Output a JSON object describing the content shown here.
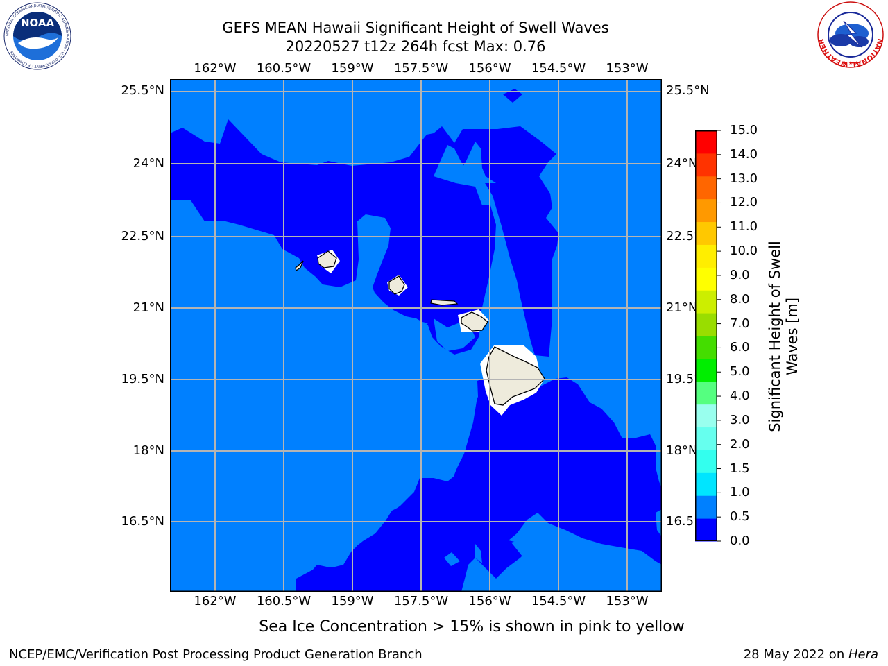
{
  "title_line1": "GEFS MEAN Hawaii Significant Height of Swell Waves",
  "title_line2": "20220527 t12z 264h fcst   Max: 0.76",
  "lon_labels": [
    "162°W",
    "160.5°W",
    "159°W",
    "157.5°W",
    "156°W",
    "154.5°W",
    "153°W"
  ],
  "lat_labels": [
    "25.5°N",
    "24°N",
    "22.5°N",
    "21°N",
    "19.5°N",
    "18°N",
    "16.5°N"
  ],
  "colorbar": {
    "title_line1": "Significant Height of Swell",
    "title_line2": "Waves [m]",
    "tick_labels": [
      "0.0",
      "0.5",
      "1.0",
      "1.5",
      "2.0",
      "3.0",
      "4.0",
      "5.0",
      "6.0",
      "7.0",
      "8.0",
      "9.0",
      "10.0",
      "11.0",
      "12.0",
      "13.0",
      "14.0",
      "15.0"
    ],
    "colors": [
      "#0000ff",
      "#0080ff",
      "#00e5ff",
      "#33ffee",
      "#66ffee",
      "#99ffee",
      "#55ff80",
      "#00ee00",
      "#44dd00",
      "#99dd00",
      "#ccee00",
      "#ffff00",
      "#ffee00",
      "#ffc800",
      "#ff9900",
      "#ff6600",
      "#ff3300",
      "#ff0000"
    ]
  },
  "caption": "Sea Ice Concentration > 15% is shown in pink to yellow",
  "footer_left": "NCEP/EMC/Verification Post Processing Product Generation Branch",
  "footer_right_prefix": "28 May 2022 on ",
  "footer_right_host": "Hera",
  "logos": {
    "noaa": {
      "text": "NOAA",
      "ring_text": "NATIONAL OCEANIC AND ATMOSPHERIC ADMINISTRATION · U.S. DEPARTMENT OF COMMERCE ·"
    },
    "nws": {
      "ring_text": "NATIONAL WEATHER SERVICE"
    }
  },
  "map_colors": {
    "dark": "#0000ff",
    "light": "#0080ff",
    "land": "#eeebdc",
    "grid": "#b4b4b4"
  }
}
